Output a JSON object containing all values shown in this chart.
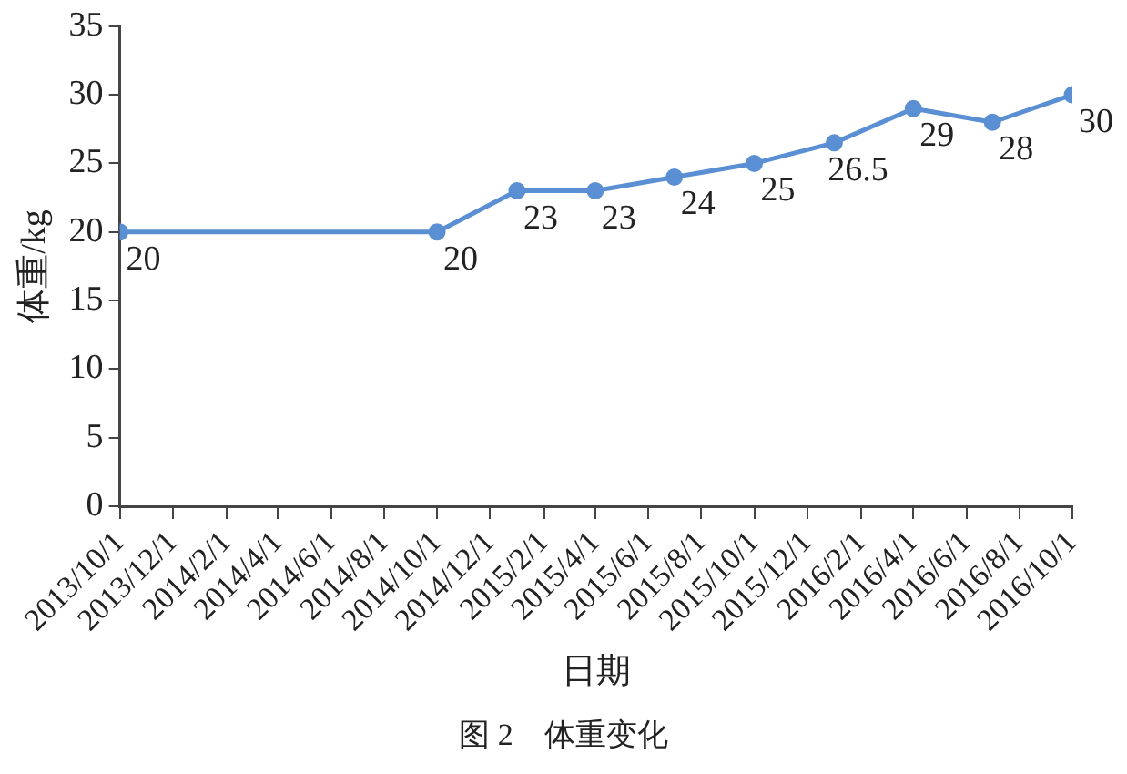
{
  "chart_data": {
    "type": "line",
    "xlabel": "日期",
    "ylabel": "体重/kg",
    "annotations": [
      "图 2　体重变化"
    ],
    "x": [
      "2013-10-01",
      "2014-10-01",
      "2015-01-01",
      "2015-04-01",
      "2015-07-01",
      "2015-10-01",
      "2016-01-01",
      "2016-04-01",
      "2016-07-01",
      "2016-10-01"
    ],
    "series": [
      {
        "color": "#5b8fd4",
        "values": [
          20,
          20,
          23,
          23,
          24,
          25,
          26.5,
          29,
          28,
          30
        ]
      }
    ],
    "xlim": [
      "2013-10-01",
      "2016-10-01"
    ],
    "xticks": [
      {
        "value": "2013-10-01",
        "label": "2013/10/1"
      },
      {
        "value": "2013-12-01",
        "label": "2013/12/1"
      },
      {
        "value": "2014-02-01",
        "label": "2014/2/1"
      },
      {
        "value": "2014-04-01",
        "label": "2014/4/1"
      },
      {
        "value": "2014-06-01",
        "label": "2014/6/1"
      },
      {
        "value": "2014-08-01",
        "label": "2014/8/1"
      },
      {
        "value": "2014-10-01",
        "label": "2014/10/1"
      },
      {
        "value": "2014-12-01",
        "label": "2014/12/1"
      },
      {
        "value": "2015-02-01",
        "label": "2015/2/1"
      },
      {
        "value": "2015-04-01",
        "label": "2015/4/1"
      },
      {
        "value": "2015-06-01",
        "label": "2015/6/1"
      },
      {
        "value": "2015-08-01",
        "label": "2015/8/1"
      },
      {
        "value": "2015-10-01",
        "label": "2015/10/1"
      },
      {
        "value": "2015-12-01",
        "label": "2015/12/1"
      },
      {
        "value": "2016-02-01",
        "label": "2016/2/1"
      },
      {
        "value": "2016-04-01",
        "label": "2016/4/1"
      },
      {
        "value": "2016-06-01",
        "label": "2016/6/1"
      },
      {
        "value": "2016-08-01",
        "label": "2016/8/1"
      },
      {
        "value": "2016-10-01",
        "label": "2016/10/1"
      }
    ],
    "ylim": [
      0,
      35
    ],
    "yticks": [
      0,
      5,
      10,
      15,
      20,
      25,
      30,
      35
    ],
    "grid": false,
    "legend": false,
    "marker": "circle",
    "line_style": "solid",
    "data_labels": true
  }
}
